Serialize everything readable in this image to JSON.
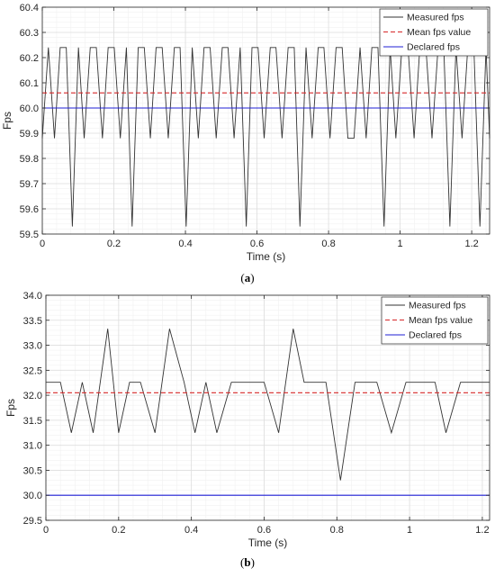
{
  "chart_data": [
    {
      "type": "line",
      "caption": "a",
      "xlabel": "Time (s)",
      "ylabel": "Fps",
      "xlim": [
        0,
        1.25
      ],
      "ylim": [
        59.5,
        60.4
      ],
      "xticks": [
        0,
        0.2,
        0.4,
        0.6,
        0.8,
        1,
        1.2
      ],
      "xtick_labels": [
        "0",
        "0.2",
        "0.4",
        "0.6",
        "0.8",
        "1",
        "1.2"
      ],
      "yticks": [
        59.5,
        59.6,
        59.7,
        59.8,
        59.9,
        60.0,
        60.1,
        60.2,
        60.3,
        60.4
      ],
      "ytick_labels": [
        "59.5",
        "59.6",
        "59.7",
        "59.8",
        "59.9",
        "60.0",
        "60.1",
        "60.2",
        "60.3",
        "60.4"
      ],
      "grid": true,
      "minor_grid": true,
      "legend_position": "top-right",
      "legend": [
        "Measured fps",
        "Mean fps value",
        "Declared fps"
      ],
      "series": [
        {
          "name": "Measured fps",
          "style": "solid",
          "color": "#333333",
          "x": [
            0,
            0.017,
            0.034,
            0.05,
            0.067,
            0.084,
            0.101,
            0.117,
            0.134,
            0.151,
            0.168,
            0.184,
            0.201,
            0.218,
            0.235,
            0.251,
            0.268,
            0.285,
            0.302,
            0.318,
            0.335,
            0.352,
            0.369,
            0.385,
            0.402,
            0.419,
            0.436,
            0.452,
            0.469,
            0.486,
            0.503,
            0.519,
            0.536,
            0.553,
            0.57,
            0.586,
            0.603,
            0.62,
            0.637,
            0.653,
            0.67,
            0.687,
            0.704,
            0.72,
            0.737,
            0.754,
            0.771,
            0.787,
            0.804,
            0.821,
            0.838,
            0.854,
            0.871,
            0.888,
            0.905,
            0.921,
            0.938,
            0.955,
            0.972,
            0.988,
            1.005,
            1.022,
            1.039,
            1.055,
            1.072,
            1.089,
            1.106,
            1.122,
            1.139,
            1.156,
            1.173,
            1.189,
            1.206,
            1.223,
            1.24,
            1.25
          ],
          "values": [
            59.88,
            60.24,
            59.88,
            60.24,
            60.24,
            59.53,
            60.24,
            59.88,
            60.24,
            60.24,
            59.88,
            60.24,
            60.24,
            59.88,
            60.24,
            59.53,
            60.24,
            60.24,
            59.88,
            60.24,
            60.24,
            59.88,
            60.24,
            60.24,
            59.53,
            60.24,
            59.88,
            60.24,
            60.24,
            59.88,
            60.24,
            60.24,
            59.88,
            60.24,
            59.53,
            60.24,
            60.24,
            59.88,
            60.24,
            60.24,
            59.88,
            60.24,
            60.24,
            59.53,
            60.24,
            59.88,
            60.24,
            60.24,
            59.88,
            60.24,
            60.24,
            59.88,
            59.88,
            60.24,
            59.88,
            60.24,
            60.24,
            59.53,
            60.24,
            59.88,
            60.24,
            60.24,
            59.88,
            60.24,
            60.24,
            59.88,
            60.24,
            60.24,
            59.53,
            60.24,
            59.88,
            60.24,
            60.24,
            59.53,
            60.24,
            59.88
          ]
        },
        {
          "name": "Mean fps value",
          "style": "dashed",
          "color": "#d62728",
          "x": [
            0,
            1.25
          ],
          "values": [
            60.06,
            60.06
          ]
        },
        {
          "name": "Declared fps",
          "style": "solid",
          "color": "#1f1fd6",
          "x": [
            0,
            1.25
          ],
          "values": [
            60.0,
            60.0
          ]
        }
      ]
    },
    {
      "type": "line",
      "caption": "b",
      "xlabel": "Time (s)",
      "ylabel": "Fps",
      "xlim": [
        0,
        1.22
      ],
      "ylim": [
        29.5,
        34.0
      ],
      "xticks": [
        0,
        0.2,
        0.4,
        0.6,
        0.8,
        1,
        1.2
      ],
      "xtick_labels": [
        "0",
        "0.2",
        "0.4",
        "0.6",
        "0.8",
        "1",
        "1.2"
      ],
      "yticks": [
        29.5,
        30.0,
        30.5,
        31.0,
        31.5,
        32.0,
        32.5,
        33.0,
        33.5,
        34.0
      ],
      "ytick_labels": [
        "29.5",
        "30.0",
        "30.5",
        "31.0",
        "31.5",
        "32.0",
        "32.5",
        "33.0",
        "33.5",
        "34.0"
      ],
      "grid": true,
      "minor_grid": true,
      "legend_position": "top-right",
      "legend": [
        "Measured fps",
        "Mean fps value",
        "Declared fps"
      ],
      "series": [
        {
          "name": "Measured fps",
          "style": "solid",
          "color": "#333333",
          "x": [
            0,
            0.04,
            0.07,
            0.1,
            0.13,
            0.17,
            0.2,
            0.23,
            0.26,
            0.3,
            0.34,
            0.38,
            0.41,
            0.44,
            0.47,
            0.51,
            0.55,
            0.6,
            0.64,
            0.68,
            0.71,
            0.77,
            0.81,
            0.85,
            0.91,
            0.95,
            0.99,
            1.03,
            1.07,
            1.1,
            1.14,
            1.17,
            1.22
          ],
          "values": [
            32.26,
            32.26,
            31.25,
            32.26,
            31.25,
            33.33,
            31.25,
            32.26,
            32.26,
            31.25,
            33.33,
            32.26,
            31.25,
            32.26,
            31.25,
            32.26,
            32.26,
            32.26,
            31.25,
            33.33,
            32.26,
            32.26,
            30.3,
            32.26,
            32.26,
            31.25,
            32.26,
            32.26,
            32.26,
            31.25,
            32.26,
            32.26,
            32.26
          ]
        },
        {
          "name": "Mean fps value",
          "style": "dashed",
          "color": "#d62728",
          "x": [
            0,
            1.22
          ],
          "values": [
            32.05,
            32.05
          ]
        },
        {
          "name": "Declared fps",
          "style": "solid",
          "color": "#1f1fd6",
          "x": [
            0,
            1.22
          ],
          "values": [
            30.0,
            30.0
          ]
        }
      ]
    }
  ]
}
